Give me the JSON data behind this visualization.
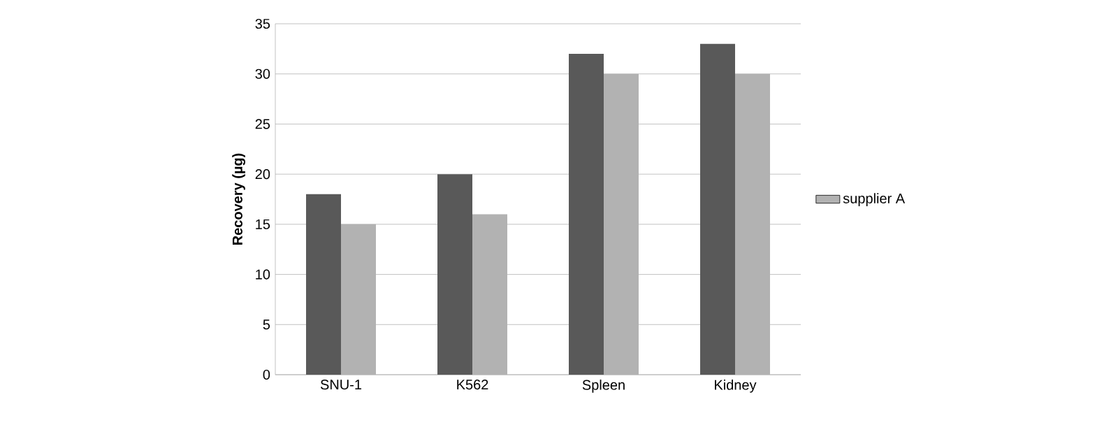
{
  "chart_data": {
    "type": "bar",
    "ylabel": "Recovery (µg)",
    "categories": [
      "SNU-1",
      "K562",
      "Spleen",
      "Kidney"
    ],
    "series": [
      {
        "color": "#595959",
        "values": [
          18,
          20,
          32,
          33
        ]
      },
      {
        "name": "supplier A",
        "color": "#b2b2b2",
        "values": [
          15,
          16,
          30,
          30
        ]
      }
    ],
    "ylim": [
      0,
      35
    ],
    "yticks": [
      0,
      5,
      10,
      15,
      20,
      25,
      30,
      35
    ],
    "grid": "y",
    "legend": "right"
  }
}
